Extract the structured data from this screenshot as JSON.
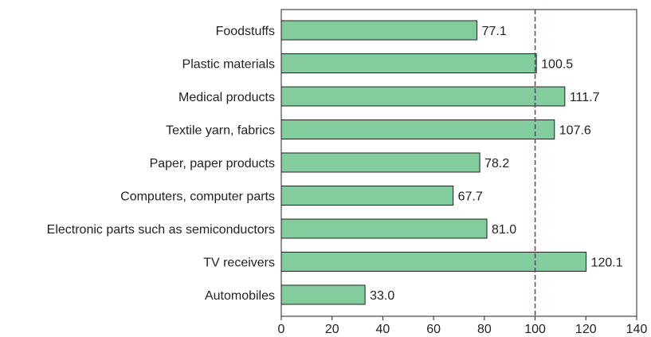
{
  "chart_data": {
    "type": "bar",
    "orientation": "horizontal",
    "categories": [
      "Foodstuffs",
      "Plastic materials",
      "Medical products",
      "Textile yarn, fabrics",
      "Paper, paper products",
      "Computers, computer parts",
      "Electronic parts such as semiconductors",
      "TV receivers",
      "Automobiles"
    ],
    "values": [
      77.1,
      100.5,
      111.7,
      107.6,
      78.2,
      67.7,
      81.0,
      120.1,
      33.0
    ],
    "value_labels": [
      "77.1",
      "100.5",
      "111.7",
      "107.6",
      "78.2",
      "67.7",
      "81.0",
      "120.1",
      "33.0"
    ],
    "xlim": [
      0,
      140
    ],
    "xticks": [
      "0",
      "20",
      "40",
      "60",
      "80",
      "100",
      "120",
      "140"
    ],
    "reference_line": 100,
    "grid": false,
    "colors": {
      "bar_fill": "#82cc9d",
      "bar_stroke": "#231f20",
      "reference_line": "#7b2d8e",
      "axis": "#231f20"
    }
  }
}
